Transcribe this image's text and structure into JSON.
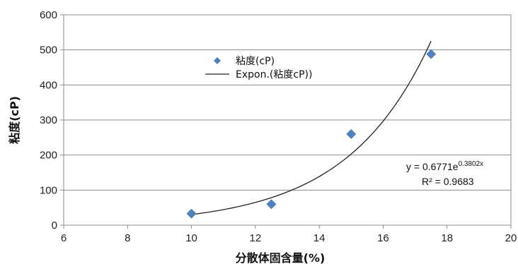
{
  "chart_data": {
    "type": "scatter",
    "xlabel": "分散体固含量(%)",
    "ylabel": "粘度(cP)",
    "xlim": [
      6,
      20
    ],
    "ylim": [
      0,
      600
    ],
    "x_ticks": [
      6,
      8,
      10,
      12,
      14,
      16,
      18,
      20
    ],
    "y_ticks": [
      0,
      100,
      200,
      300,
      400,
      500,
      600
    ],
    "grid": {
      "horizontal": true,
      "vertical": false
    },
    "legend_position": "top-center",
    "series": [
      {
        "name": "粘度(cP)",
        "marker": "diamond",
        "color": "#4F81BD",
        "x": [
          10,
          12.5,
          15,
          17.5
        ],
        "y": [
          33,
          60,
          260,
          488
        ]
      }
    ],
    "trendline": {
      "name": "Expon.(粘度cP))",
      "type": "exponential",
      "a": 0.6771,
      "b": 0.3802,
      "x_range": [
        10,
        17.5
      ],
      "color": "#222222"
    },
    "annotations": {
      "equation_prefix": "y = 0.6771e",
      "equation_exponent": "0.3802x",
      "r_squared": "R² = 0.9683"
    }
  }
}
